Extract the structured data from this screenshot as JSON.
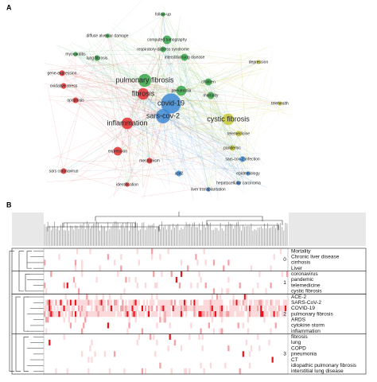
{
  "panel_a": {
    "label": "A",
    "nodes": [
      {
        "label": "covid-19",
        "color": "#3e8ad6",
        "size": 14
      },
      {
        "label": "sars-cov-2",
        "color": "#3e8ad6",
        "size": 10
      },
      {
        "label": "pulmonary fibrosis",
        "color": "#3aa64a",
        "size": 9
      },
      {
        "label": "pneumonia",
        "color": "#3aa64a",
        "size": 7
      },
      {
        "label": "fibrosis",
        "color": "#e03030",
        "size": 8
      },
      {
        "label": "inflammation",
        "color": "#e03030",
        "size": 8
      },
      {
        "label": "cystic fibrosis",
        "color": "#c8c838",
        "size": 8
      },
      {
        "label": "computed tomography",
        "color": "#3aa64a",
        "size": 6
      },
      {
        "label": "interstitial lung disease",
        "color": "#3aa64a",
        "size": 5
      },
      {
        "label": "respiratory distress syndrome",
        "color": "#3aa64a",
        "size": 4
      },
      {
        "label": "diffuse alveolar damage",
        "color": "#3aa64a",
        "size": 3
      },
      {
        "label": "lung fibrosis",
        "color": "#3aa64a",
        "size": 4
      },
      {
        "label": "myocarditis",
        "color": "#3aa64a",
        "size": 3
      },
      {
        "label": "follow-up",
        "color": "#3aa64a",
        "size": 3
      },
      {
        "label": "gene-expression",
        "color": "#e03030",
        "size": 4
      },
      {
        "label": "oxidative stress",
        "color": "#e03030",
        "size": 4
      },
      {
        "label": "apoptosis",
        "color": "#e03030",
        "size": 4
      },
      {
        "label": "expression",
        "color": "#e03030",
        "size": 6
      },
      {
        "label": "sars coronavirus",
        "color": "#e03030",
        "size": 4
      },
      {
        "label": "identification",
        "color": "#e03030",
        "size": 3
      },
      {
        "label": "mechanism",
        "color": "#e03030",
        "size": 4
      },
      {
        "label": "children",
        "color": "#3aa64a",
        "size": 5
      },
      {
        "label": "mortality",
        "color": "#3aa64a",
        "size": 5
      },
      {
        "label": "depression",
        "color": "#c8c838",
        "size": 3
      },
      {
        "label": "telehealth",
        "color": "#c8c838",
        "size": 3
      },
      {
        "label": "telemedicine",
        "color": "#c8c838",
        "size": 4
      },
      {
        "label": "pandemic",
        "color": "#c8c838",
        "size": 4
      },
      {
        "label": "sars-cov-2 infection",
        "color": "#3e8ad6",
        "size": 4
      },
      {
        "label": "epidemiology",
        "color": "#3e8ad6",
        "size": 3
      },
      {
        "label": "hepatocellular carcinoma",
        "color": "#3e8ad6",
        "size": 3
      },
      {
        "label": "liver transplantation",
        "color": "#3e8ad6",
        "size": 3
      },
      {
        "label": "ace2",
        "color": "#3e8ad6",
        "size": 4
      }
    ]
  },
  "panel_b": {
    "label": "B",
    "rows": [
      "Mortality",
      "Chronic liver disease",
      "cirrhosis",
      "Liver",
      "coronavirus",
      "pandemic",
      "telemedicine",
      "cystic fibrosis",
      "ACE-2",
      "SARS-CoV-2",
      "COVID-19",
      "pulmonary fibrosis",
      "ARDS",
      "cytokine storm",
      "inflammation",
      "fibrosis",
      "lung",
      "COPD",
      "pneumonia",
      "CT",
      "idiopathic pulmonary fibrosis",
      "interstitial lung disease"
    ],
    "clusters": [
      {
        "label": "0",
        "rows": 4
      },
      {
        "label": "1",
        "rows": 4
      },
      {
        "label": "2",
        "rows": 7
      },
      {
        "label": "3",
        "rows": 7
      }
    ]
  }
}
